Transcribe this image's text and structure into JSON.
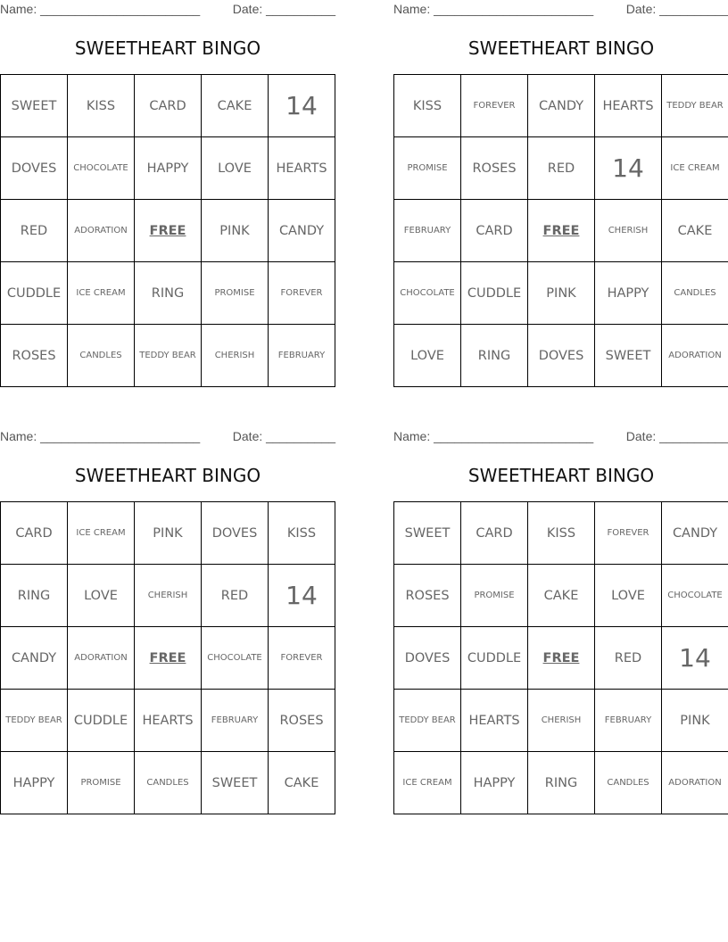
{
  "name_label": "Name: _______________________",
  "date_label": "Date: __________",
  "title": "SWEETHEART BINGO",
  "free_word": "FREE",
  "cards": [
    {
      "rows": [
        [
          "SWEET",
          "KISS",
          "CARD",
          "CAKE",
          "14"
        ],
        [
          "DOVES",
          "CHOCOLATE",
          "HAPPY",
          "LOVE",
          "HEARTS"
        ],
        [
          "RED",
          "ADORATION",
          "FREE",
          "PINK",
          "CANDY"
        ],
        [
          "CUDDLE",
          "ICE CREAM",
          "RING",
          "PROMISE",
          "FOREVER"
        ],
        [
          "ROSES",
          "CANDLES",
          "TEDDY BEAR",
          "CHERISH",
          "FEBRUARY"
        ]
      ]
    },
    {
      "rows": [
        [
          "KISS",
          "FOREVER",
          "CANDY",
          "HEARTS",
          "TEDDY BEAR"
        ],
        [
          "PROMISE",
          "ROSES",
          "RED",
          "14",
          "ICE CREAM"
        ],
        [
          "FEBRUARY",
          "CARD",
          "FREE",
          "CHERISH",
          "CAKE"
        ],
        [
          "CHOCOLATE",
          "CUDDLE",
          "PINK",
          "HAPPY",
          "CANDLES"
        ],
        [
          "LOVE",
          "RING",
          "DOVES",
          "SWEET",
          "ADORATION"
        ]
      ]
    },
    {
      "rows": [
        [
          "CARD",
          "ICE CREAM",
          "PINK",
          "DOVES",
          "KISS"
        ],
        [
          "RING",
          "LOVE",
          "CHERISH",
          "RED",
          "14"
        ],
        [
          "CANDY",
          "ADORATION",
          "FREE",
          "CHOCOLATE",
          "FOREVER"
        ],
        [
          "TEDDY BEAR",
          "CUDDLE",
          "HEARTS",
          "FEBRUARY",
          "ROSES"
        ],
        [
          "HAPPY",
          "PROMISE",
          "CANDLES",
          "SWEET",
          "CAKE"
        ]
      ]
    },
    {
      "rows": [
        [
          "SWEET",
          "CARD",
          "KISS",
          "FOREVER",
          "CANDY"
        ],
        [
          "ROSES",
          "PROMISE",
          "CAKE",
          "LOVE",
          "CHOCOLATE"
        ],
        [
          "DOVES",
          "CUDDLE",
          "FREE",
          "RED",
          "14"
        ],
        [
          "TEDDY BEAR",
          "HEARTS",
          "CHERISH",
          "FEBRUARY",
          "PINK"
        ],
        [
          "ICE CREAM",
          "HAPPY",
          "RING",
          "CANDLES",
          "ADORATION"
        ]
      ]
    }
  ]
}
